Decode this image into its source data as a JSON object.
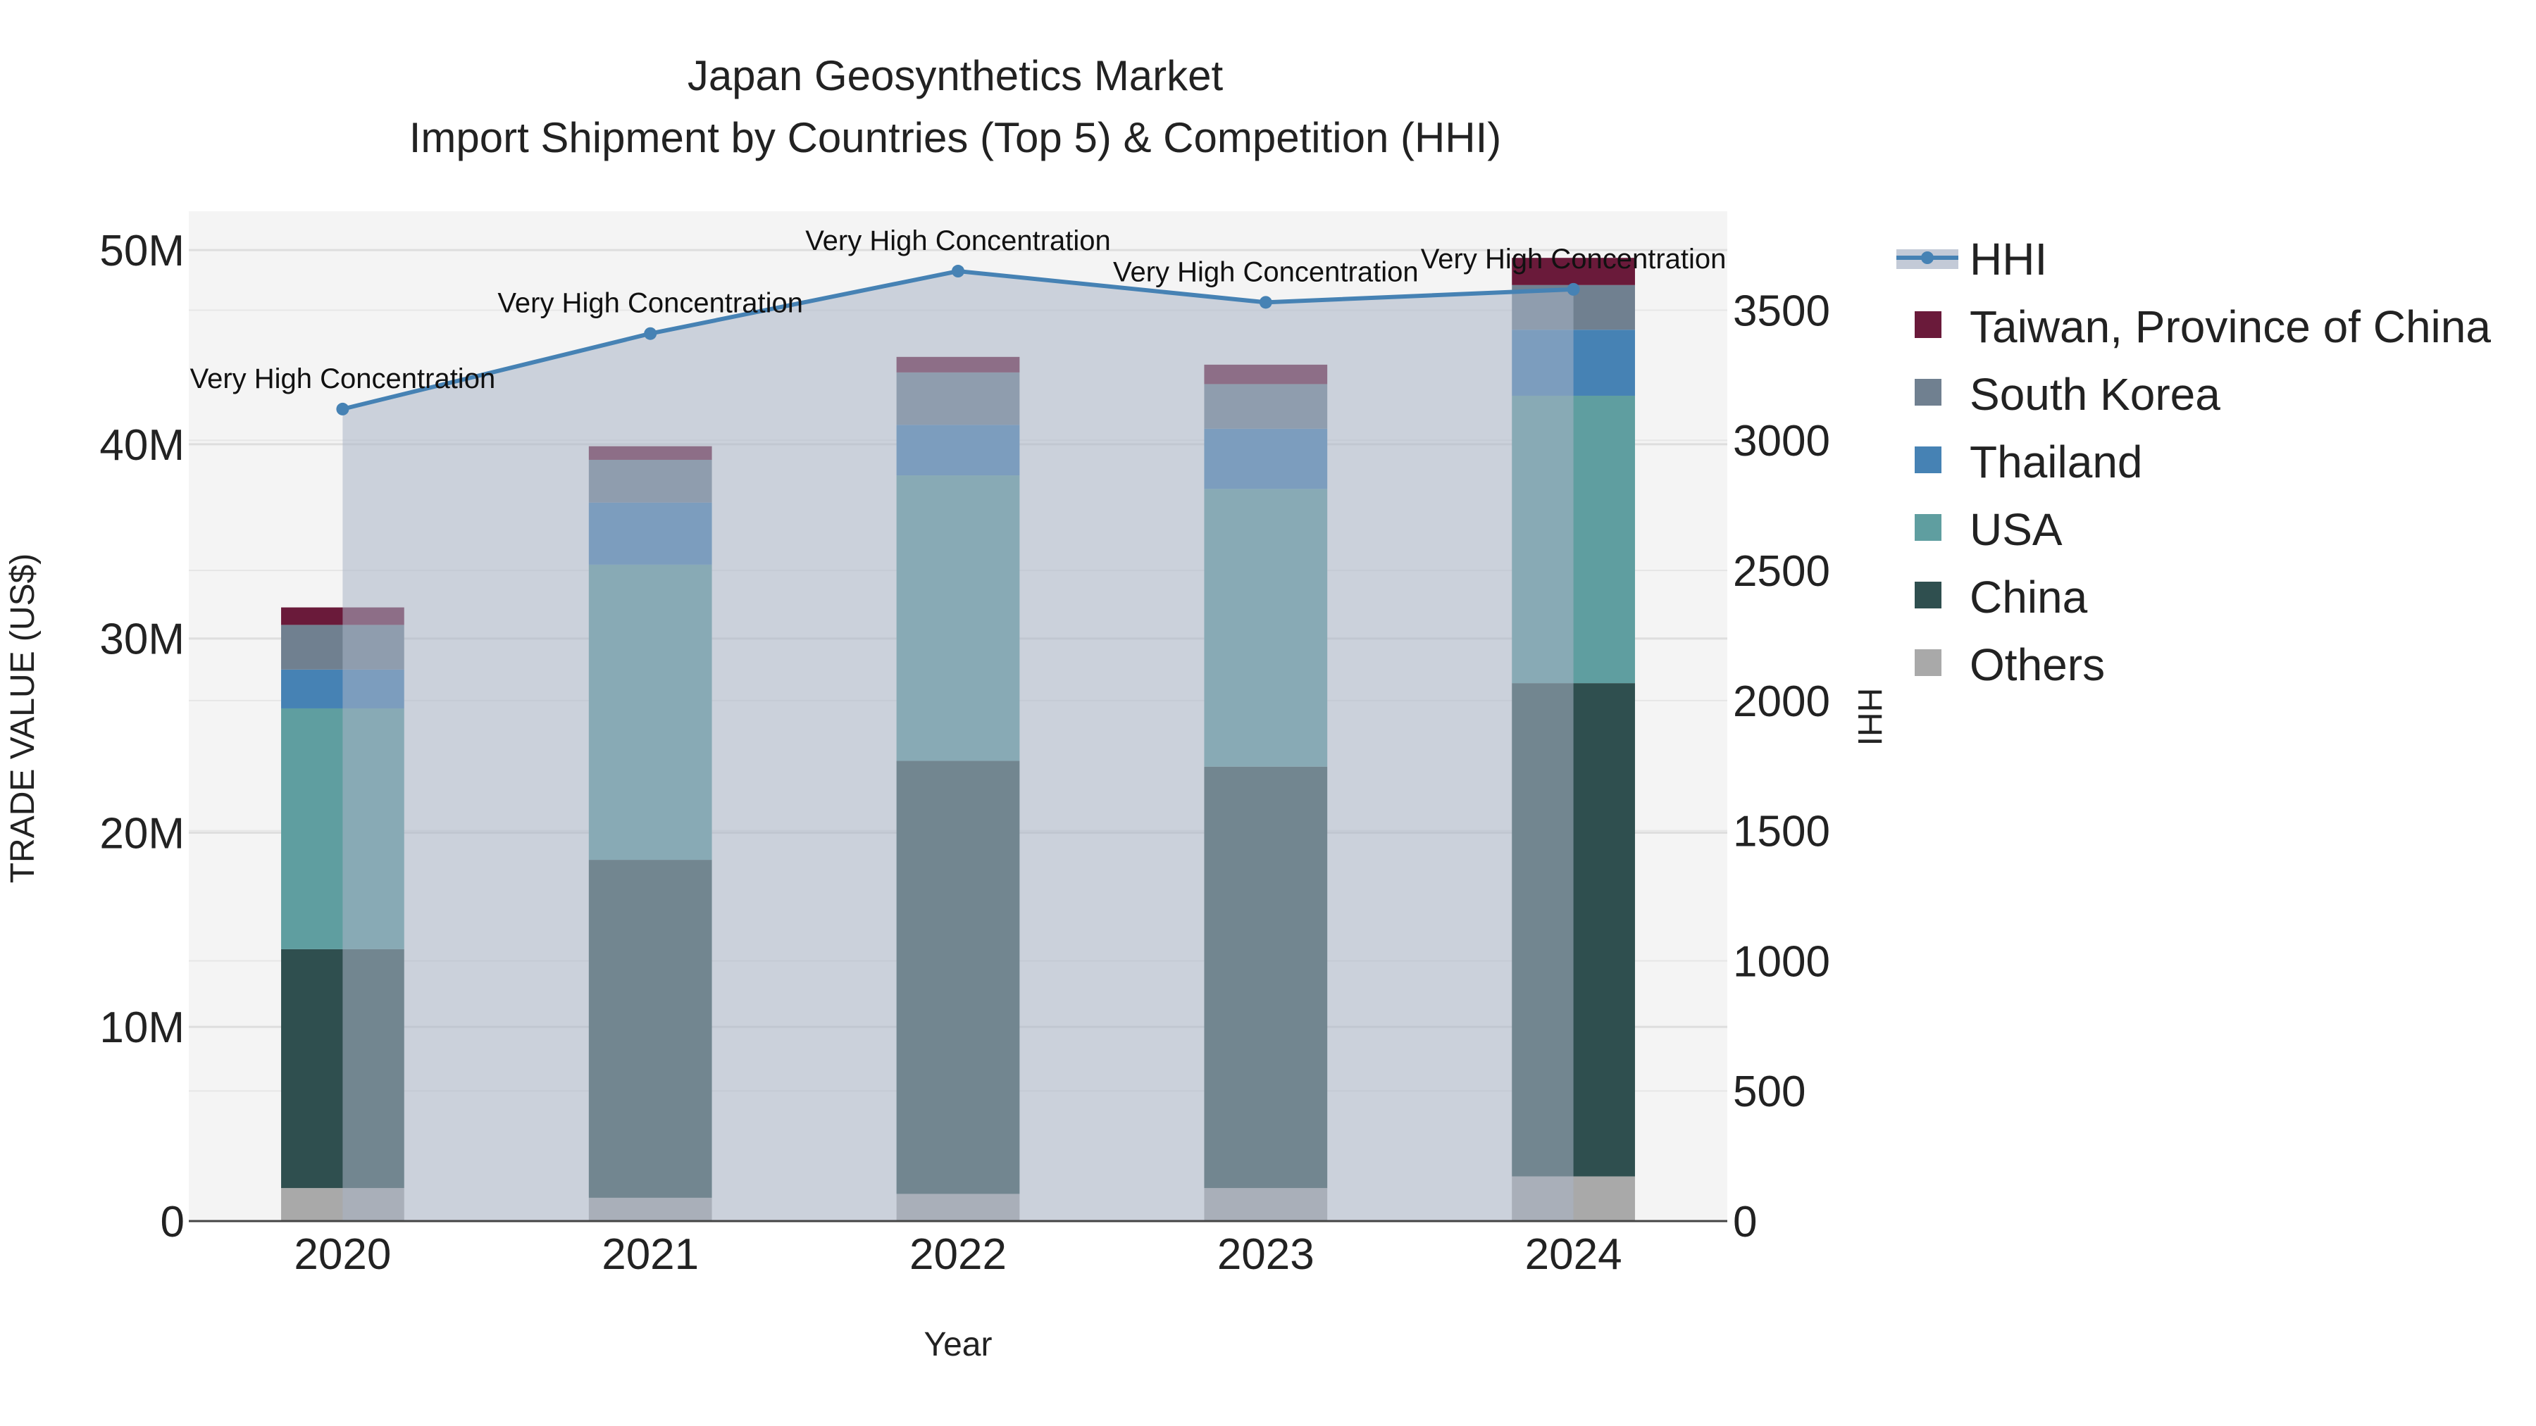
{
  "chart_data": {
    "type": "bar",
    "title": "Japan Geosynthetics Market",
    "subtitle": "Import Shipment by Countries (Top 5) & Competition (HHI)",
    "xlabel": "Year",
    "ylabel": "TRADE VALUE (US$)",
    "y2label": "HHI",
    "categories": [
      "2020",
      "2021",
      "2022",
      "2023",
      "2024"
    ],
    "ylim": [
      0,
      52000000
    ],
    "y_ticks": [
      0,
      10000000,
      20000000,
      30000000,
      40000000,
      50000000
    ],
    "y_tick_labels": [
      "0",
      "10M",
      "20M",
      "30M",
      "40M",
      "50M"
    ],
    "y2lim": [
      0,
      3880
    ],
    "y2_ticks": [
      0,
      500,
      1000,
      1500,
      2000,
      2500,
      3000,
      3500
    ],
    "y2_tick_labels": [
      "0",
      "500",
      "1000",
      "1500",
      "2000",
      "2500",
      "3000",
      "3500"
    ],
    "stacked": true,
    "series": [
      {
        "name": "Others",
        "color": "#a9a9a9",
        "values": [
          1700000,
          1200000,
          1400000,
          1700000,
          2300000
        ]
      },
      {
        "name": "China",
        "color": "#2f4f4f",
        "values": [
          12300000,
          17400000,
          22300000,
          21700000,
          25400000
        ]
      },
      {
        "name": "USA",
        "color": "#5f9ea0",
        "values": [
          12400000,
          15200000,
          14700000,
          14300000,
          14800000
        ]
      },
      {
        "name": "Thailand",
        "color": "#4682b4",
        "values": [
          2000000,
          3200000,
          2600000,
          3100000,
          3400000
        ]
      },
      {
        "name": "South Korea",
        "color": "#708090",
        "values": [
          2300000,
          2200000,
          2700000,
          2300000,
          2300000
        ]
      },
      {
        "name": "Taiwan, Province of China",
        "color": "#6a1a3a",
        "values": [
          900000,
          700000,
          800000,
          1000000,
          1400000
        ]
      }
    ],
    "hhi": {
      "name": "HHI",
      "color": "#4682b4",
      "values": [
        3120,
        3410,
        3650,
        3530,
        3580
      ],
      "annotations": [
        "Very High Concentration",
        "Very High Concentration",
        "Very High Concentration",
        "Very High Concentration",
        "Very High Concentration"
      ]
    },
    "legend": {
      "position": "right",
      "order": [
        "HHI",
        "Taiwan, Province of China",
        "South Korea",
        "Thailand",
        "USA",
        "China",
        "Others"
      ]
    }
  }
}
